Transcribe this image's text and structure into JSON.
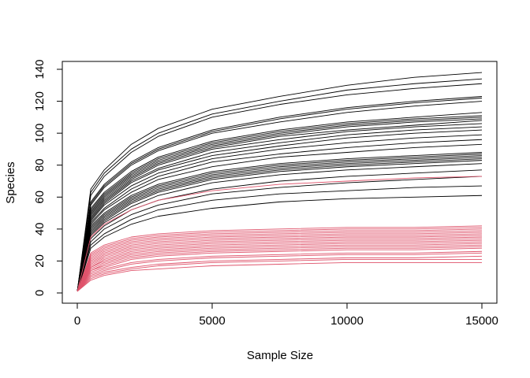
{
  "chart_data": {
    "type": "line",
    "title": "",
    "xlabel": "Sample Size",
    "ylabel": "Species",
    "xlim": [
      0,
      15000
    ],
    "ylim": [
      0,
      140
    ],
    "xticks": [
      0,
      5000,
      10000,
      15000
    ],
    "xtick_labels": [
      "0",
      "5000",
      "10000",
      "15000"
    ],
    "yticks": [
      0,
      20,
      40,
      60,
      80,
      100,
      120,
      140
    ],
    "ytick_labels": [
      "0",
      "20",
      "40",
      "60",
      "80",
      "100",
      "120",
      "140"
    ],
    "grid": false,
    "legend": "none",
    "x": [
      0,
      500,
      1000,
      2000,
      3000,
      5000,
      7500,
      10000,
      12500,
      15000
    ],
    "series_colors": {
      "black": "#000000",
      "red": "#DF536B"
    },
    "series": [
      {
        "color": "black",
        "values": [
          1,
          65,
          77,
          93,
          103,
          115,
          123,
          130,
          135,
          138
        ]
      },
      {
        "color": "black",
        "values": [
          1,
          63,
          75,
          90,
          100,
          112,
          120,
          127,
          131,
          134
        ]
      },
      {
        "color": "black",
        "values": [
          1,
          61,
          73,
          88,
          98,
          110,
          118,
          124,
          128,
          131
        ]
      },
      {
        "color": "black",
        "values": [
          1,
          57,
          68,
          82,
          91,
          102,
          110,
          116,
          120,
          123
        ]
      },
      {
        "color": "black",
        "values": [
          1,
          56,
          67,
          81,
          90,
          101,
          109,
          115,
          119,
          122
        ]
      },
      {
        "color": "black",
        "values": [
          1,
          55,
          66,
          80,
          89,
          100,
          107,
          113,
          117,
          120
        ]
      },
      {
        "color": "black",
        "values": [
          1,
          53,
          63,
          76,
          85,
          95,
          102,
          107,
          110,
          113
        ]
      },
      {
        "color": "black",
        "values": [
          1,
          52,
          62,
          75,
          84,
          94,
          101,
          106,
          109,
          111
        ]
      },
      {
        "color": "black",
        "values": [
          1,
          51,
          61,
          74,
          83,
          93,
          100,
          105,
          108,
          110
        ]
      },
      {
        "color": "black",
        "values": [
          1,
          50,
          60,
          73,
          82,
          92,
          99,
          104,
          107,
          109
        ]
      },
      {
        "color": "black",
        "values": [
          1,
          49,
          59,
          72,
          81,
          91,
          98,
          102,
          105,
          108
        ]
      },
      {
        "color": "black",
        "values": [
          1,
          48,
          58,
          71,
          80,
          90,
          96,
          101,
          104,
          106
        ]
      },
      {
        "color": "black",
        "values": [
          1,
          47,
          57,
          70,
          78,
          88,
          94,
          99,
          102,
          104
        ]
      },
      {
        "color": "black",
        "values": [
          1,
          46,
          56,
          69,
          77,
          86,
          92,
          97,
          100,
          102
        ]
      },
      {
        "color": "black",
        "values": [
          1,
          45,
          55,
          67,
          75,
          84,
          90,
          94,
          97,
          99
        ]
      },
      {
        "color": "black",
        "values": [
          1,
          44,
          53,
          65,
          73,
          82,
          87,
          91,
          94,
          96
        ]
      },
      {
        "color": "black",
        "values": [
          1,
          43,
          52,
          63,
          71,
          79,
          85,
          88,
          91,
          93
        ]
      },
      {
        "color": "black",
        "values": [
          1,
          42,
          50,
          61,
          68,
          76,
          81,
          84,
          86,
          88
        ]
      },
      {
        "color": "black",
        "values": [
          1,
          41,
          49,
          60,
          67,
          75,
          80,
          83,
          85,
          87
        ]
      },
      {
        "color": "black",
        "values": [
          1,
          40,
          48,
          59,
          66,
          74,
          79,
          82,
          84,
          86
        ]
      },
      {
        "color": "black",
        "values": [
          1,
          39,
          47,
          58,
          65,
          73,
          78,
          81,
          83,
          85
        ]
      },
      {
        "color": "black",
        "values": [
          1,
          38,
          46,
          57,
          64,
          72,
          77,
          80,
          82,
          84
        ]
      },
      {
        "color": "black",
        "values": [
          1,
          37,
          45,
          56,
          63,
          71,
          76,
          79,
          81,
          83
        ]
      },
      {
        "color": "black",
        "values": [
          1,
          36,
          44,
          54,
          61,
          69,
          74,
          77,
          79,
          81
        ]
      },
      {
        "color": "black",
        "values": [
          1,
          34,
          42,
          52,
          58,
          65,
          70,
          73,
          75,
          77
        ]
      },
      {
        "color": "black",
        "values": [
          1,
          32,
          40,
          49,
          55,
          62,
          66,
          69,
          71,
          73
        ]
      },
      {
        "color": "black",
        "values": [
          1,
          30,
          37,
          46,
          52,
          58,
          62,
          64,
          66,
          67
        ]
      },
      {
        "color": "black",
        "values": [
          1,
          28,
          35,
          43,
          48,
          53,
          57,
          59,
          60,
          61
        ]
      },
      {
        "color": "red",
        "values": [
          1,
          35,
          43,
          52,
          58,
          64,
          68,
          70,
          72,
          73
        ]
      },
      {
        "color": "red",
        "values": [
          1,
          25,
          30,
          35,
          37,
          39,
          40,
          41,
          41,
          42
        ]
      },
      {
        "color": "red",
        "values": [
          1,
          24,
          29,
          34,
          36,
          38,
          39,
          40,
          40,
          41
        ]
      },
      {
        "color": "red",
        "values": [
          1,
          23,
          28,
          33,
          35,
          37,
          38,
          39,
          39,
          40
        ]
      },
      {
        "color": "red",
        "values": [
          1,
          22,
          27,
          32,
          34,
          36,
          37,
          38,
          38,
          39
        ]
      },
      {
        "color": "red",
        "values": [
          1,
          21,
          26,
          31,
          33,
          35,
          36,
          37,
          37,
          38
        ]
      },
      {
        "color": "red",
        "values": [
          1,
          20,
          25,
          30,
          32,
          34,
          35,
          36,
          36,
          37
        ]
      },
      {
        "color": "red",
        "values": [
          1,
          19,
          24,
          29,
          31,
          33,
          34,
          35,
          35,
          36
        ]
      },
      {
        "color": "red",
        "values": [
          1,
          18,
          23,
          28,
          30,
          32,
          33,
          34,
          34,
          35
        ]
      },
      {
        "color": "red",
        "values": [
          1,
          17,
          22,
          27,
          29,
          31,
          32,
          33,
          33,
          34
        ]
      },
      {
        "color": "red",
        "values": [
          1,
          16,
          21,
          26,
          28,
          30,
          31,
          32,
          32,
          33
        ]
      },
      {
        "color": "red",
        "values": [
          1,
          16,
          20,
          25,
          27,
          29,
          30,
          31,
          31,
          32
        ]
      },
      {
        "color": "red",
        "values": [
          1,
          15,
          19,
          24,
          26,
          28,
          29,
          30,
          30,
          31
        ]
      },
      {
        "color": "red",
        "values": [
          1,
          14,
          18,
          23,
          25,
          27,
          28,
          29,
          29,
          30
        ]
      },
      {
        "color": "red",
        "values": [
          1,
          14,
          17,
          22,
          24,
          26,
          27,
          28,
          28,
          29
        ]
      },
      {
        "color": "red",
        "values": [
          1,
          13,
          16,
          21,
          23,
          25,
          26,
          27,
          27,
          28
        ]
      },
      {
        "color": "red",
        "values": [
          1,
          12,
          15,
          19,
          21,
          23,
          24,
          25,
          25,
          26
        ]
      },
      {
        "color": "red",
        "values": [
          1,
          11,
          14,
          18,
          20,
          22,
          23,
          24,
          24,
          25
        ]
      },
      {
        "color": "red",
        "values": [
          1,
          10,
          13,
          16,
          18,
          20,
          21,
          22,
          22,
          23
        ]
      },
      {
        "color": "red",
        "values": [
          1,
          9,
          12,
          15,
          17,
          19,
          20,
          21,
          21,
          21
        ]
      },
      {
        "color": "red",
        "values": [
          1,
          8,
          11,
          14,
          15,
          17,
          18,
          19,
          19,
          19
        ]
      }
    ]
  }
}
